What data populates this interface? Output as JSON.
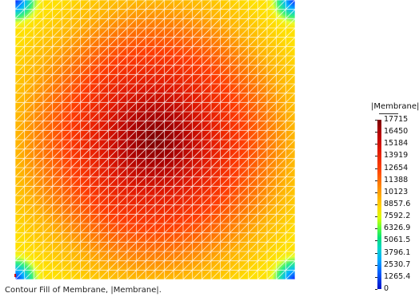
{
  "caption": "Contour Fill of Membrane, |Membrane|.",
  "legend": {
    "title": "|Membrane|",
    "values": [
      "17715",
      "16450",
      "15184",
      "13919",
      "12654",
      "11388",
      "10123",
      "8857.6",
      "7592.2",
      "6326.9",
      "5061.5",
      "3796.1",
      "2530.7",
      "1265.4",
      "0"
    ]
  },
  "plot": {
    "mesh_divisions": 30,
    "colors": {
      "mesh_lines": "#ffffff",
      "peak": "#7a0000",
      "mid": "#ff3a00",
      "edge": "#ffe400",
      "corner": "#1030ff"
    }
  }
}
